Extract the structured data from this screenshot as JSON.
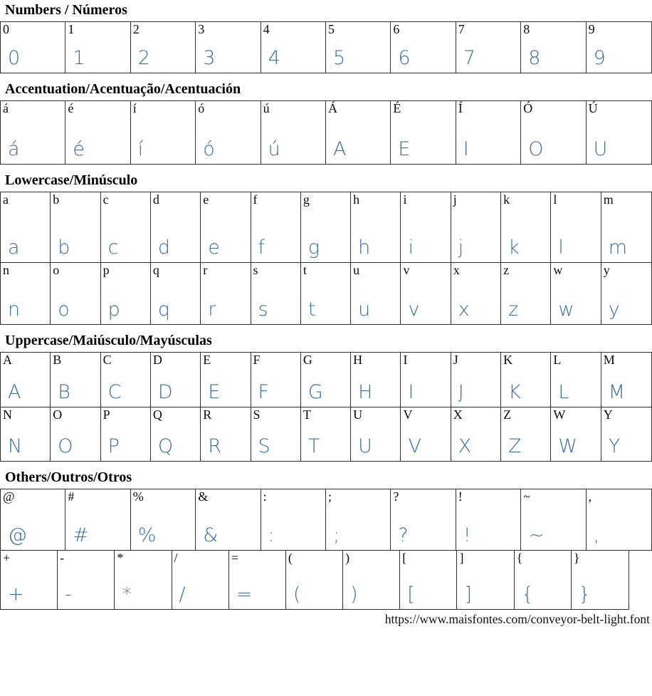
{
  "glyph_color": "#3a6ea8",
  "border_color": "#2f2f2f",
  "footer": {
    "url": "https://www.maisfontes.com/conveyor-belt-light.font"
  },
  "sections": [
    {
      "id": "numbers",
      "title": "Numbers / Números",
      "rows": [
        [
          {
            "ref": "0",
            "glyph": "0"
          },
          {
            "ref": "1",
            "glyph": "1"
          },
          {
            "ref": "2",
            "glyph": "2"
          },
          {
            "ref": "3",
            "glyph": "3"
          },
          {
            "ref": "4",
            "glyph": "4"
          },
          {
            "ref": "5",
            "glyph": "5"
          },
          {
            "ref": "6",
            "glyph": "6"
          },
          {
            "ref": "7",
            "glyph": "7"
          },
          {
            "ref": "8",
            "glyph": "8"
          },
          {
            "ref": "9",
            "glyph": "9"
          }
        ]
      ]
    },
    {
      "id": "accentuation",
      "title": "Accentuation/Acentuação/Acentuación",
      "rows": [
        [
          {
            "ref": "á",
            "glyph": "á"
          },
          {
            "ref": "é",
            "glyph": "é"
          },
          {
            "ref": "í",
            "glyph": "í"
          },
          {
            "ref": "ó",
            "glyph": "ó"
          },
          {
            "ref": "ú",
            "glyph": "ú"
          },
          {
            "ref": "Á",
            "glyph": "A"
          },
          {
            "ref": "É",
            "glyph": "E"
          },
          {
            "ref": "Í",
            "glyph": "I"
          },
          {
            "ref": "Ó",
            "glyph": "O"
          },
          {
            "ref": "Ú",
            "glyph": "U"
          }
        ]
      ]
    },
    {
      "id": "lowercase",
      "title": "Lowercase/Minúsculo",
      "rows": [
        [
          {
            "ref": "a",
            "glyph": "a"
          },
          {
            "ref": "b",
            "glyph": "b"
          },
          {
            "ref": "c",
            "glyph": "c"
          },
          {
            "ref": "d",
            "glyph": "d"
          },
          {
            "ref": "e",
            "glyph": "e"
          },
          {
            "ref": "f",
            "glyph": "f"
          },
          {
            "ref": "g",
            "glyph": "g"
          },
          {
            "ref": "h",
            "glyph": "h"
          },
          {
            "ref": "i",
            "glyph": "i"
          },
          {
            "ref": "j",
            "glyph": "j"
          },
          {
            "ref": "k",
            "glyph": "k"
          },
          {
            "ref": "l",
            "glyph": "l"
          },
          {
            "ref": "m",
            "glyph": "m"
          }
        ],
        [
          {
            "ref": "n",
            "glyph": "n"
          },
          {
            "ref": "o",
            "glyph": "o"
          },
          {
            "ref": "p",
            "glyph": "p"
          },
          {
            "ref": "q",
            "glyph": "q"
          },
          {
            "ref": "r",
            "glyph": "r"
          },
          {
            "ref": "s",
            "glyph": "s"
          },
          {
            "ref": "t",
            "glyph": "t"
          },
          {
            "ref": "u",
            "glyph": "u"
          },
          {
            "ref": "v",
            "glyph": "v"
          },
          {
            "ref": "x",
            "glyph": "x"
          },
          {
            "ref": "z",
            "glyph": "z"
          },
          {
            "ref": "w",
            "glyph": "w"
          },
          {
            "ref": "y",
            "glyph": "y"
          }
        ]
      ]
    },
    {
      "id": "uppercase",
      "title": "Uppercase/Maiúsculo/Mayúsculas",
      "rows": [
        [
          {
            "ref": "A",
            "glyph": "A"
          },
          {
            "ref": "B",
            "glyph": "B"
          },
          {
            "ref": "C",
            "glyph": "C"
          },
          {
            "ref": "D",
            "glyph": "D"
          },
          {
            "ref": "E",
            "glyph": "E"
          },
          {
            "ref": "F",
            "glyph": "F"
          },
          {
            "ref": "G",
            "glyph": "G"
          },
          {
            "ref": "H",
            "glyph": "H"
          },
          {
            "ref": "I",
            "glyph": "I"
          },
          {
            "ref": "J",
            "glyph": "J"
          },
          {
            "ref": "K",
            "glyph": "K"
          },
          {
            "ref": "L",
            "glyph": "L"
          },
          {
            "ref": "M",
            "glyph": "M"
          }
        ],
        [
          {
            "ref": "N",
            "glyph": "N"
          },
          {
            "ref": "O",
            "glyph": "O"
          },
          {
            "ref": "P",
            "glyph": "P"
          },
          {
            "ref": "Q",
            "glyph": "Q"
          },
          {
            "ref": "R",
            "glyph": "R"
          },
          {
            "ref": "S",
            "glyph": "S"
          },
          {
            "ref": "T",
            "glyph": "T"
          },
          {
            "ref": "U",
            "glyph": "U"
          },
          {
            "ref": "V",
            "glyph": "V"
          },
          {
            "ref": "X",
            "glyph": "X"
          },
          {
            "ref": "Z",
            "glyph": "Z"
          },
          {
            "ref": "W",
            "glyph": "W"
          },
          {
            "ref": "Y",
            "glyph": "Y"
          }
        ]
      ]
    },
    {
      "id": "others",
      "title": "Others/Outros/Otros",
      "rows": [
        [
          {
            "ref": "@",
            "glyph": "@"
          },
          {
            "ref": "#",
            "glyph": "#"
          },
          {
            "ref": "%",
            "glyph": "%"
          },
          {
            "ref": "&",
            "glyph": "&"
          },
          {
            "ref": ":",
            "glyph": ":"
          },
          {
            "ref": ";",
            "glyph": ";"
          },
          {
            "ref": "?",
            "glyph": "?"
          },
          {
            "ref": "!",
            "glyph": "!"
          },
          {
            "ref": "~",
            "glyph": "~"
          },
          {
            "ref": ",",
            "glyph": ","
          }
        ],
        [
          {
            "ref": "+",
            "glyph": "+"
          },
          {
            "ref": "-",
            "glyph": "-"
          },
          {
            "ref": "*",
            "glyph": "*"
          },
          {
            "ref": "/",
            "glyph": "/"
          },
          {
            "ref": "=",
            "glyph": "="
          },
          {
            "ref": "(",
            "glyph": "("
          },
          {
            "ref": ")",
            "glyph": ")"
          },
          {
            "ref": "[",
            "glyph": "["
          },
          {
            "ref": "]",
            "glyph": "]"
          },
          {
            "ref": "{",
            "glyph": "{"
          },
          {
            "ref": "}",
            "glyph": "}"
          }
        ]
      ]
    }
  ]
}
